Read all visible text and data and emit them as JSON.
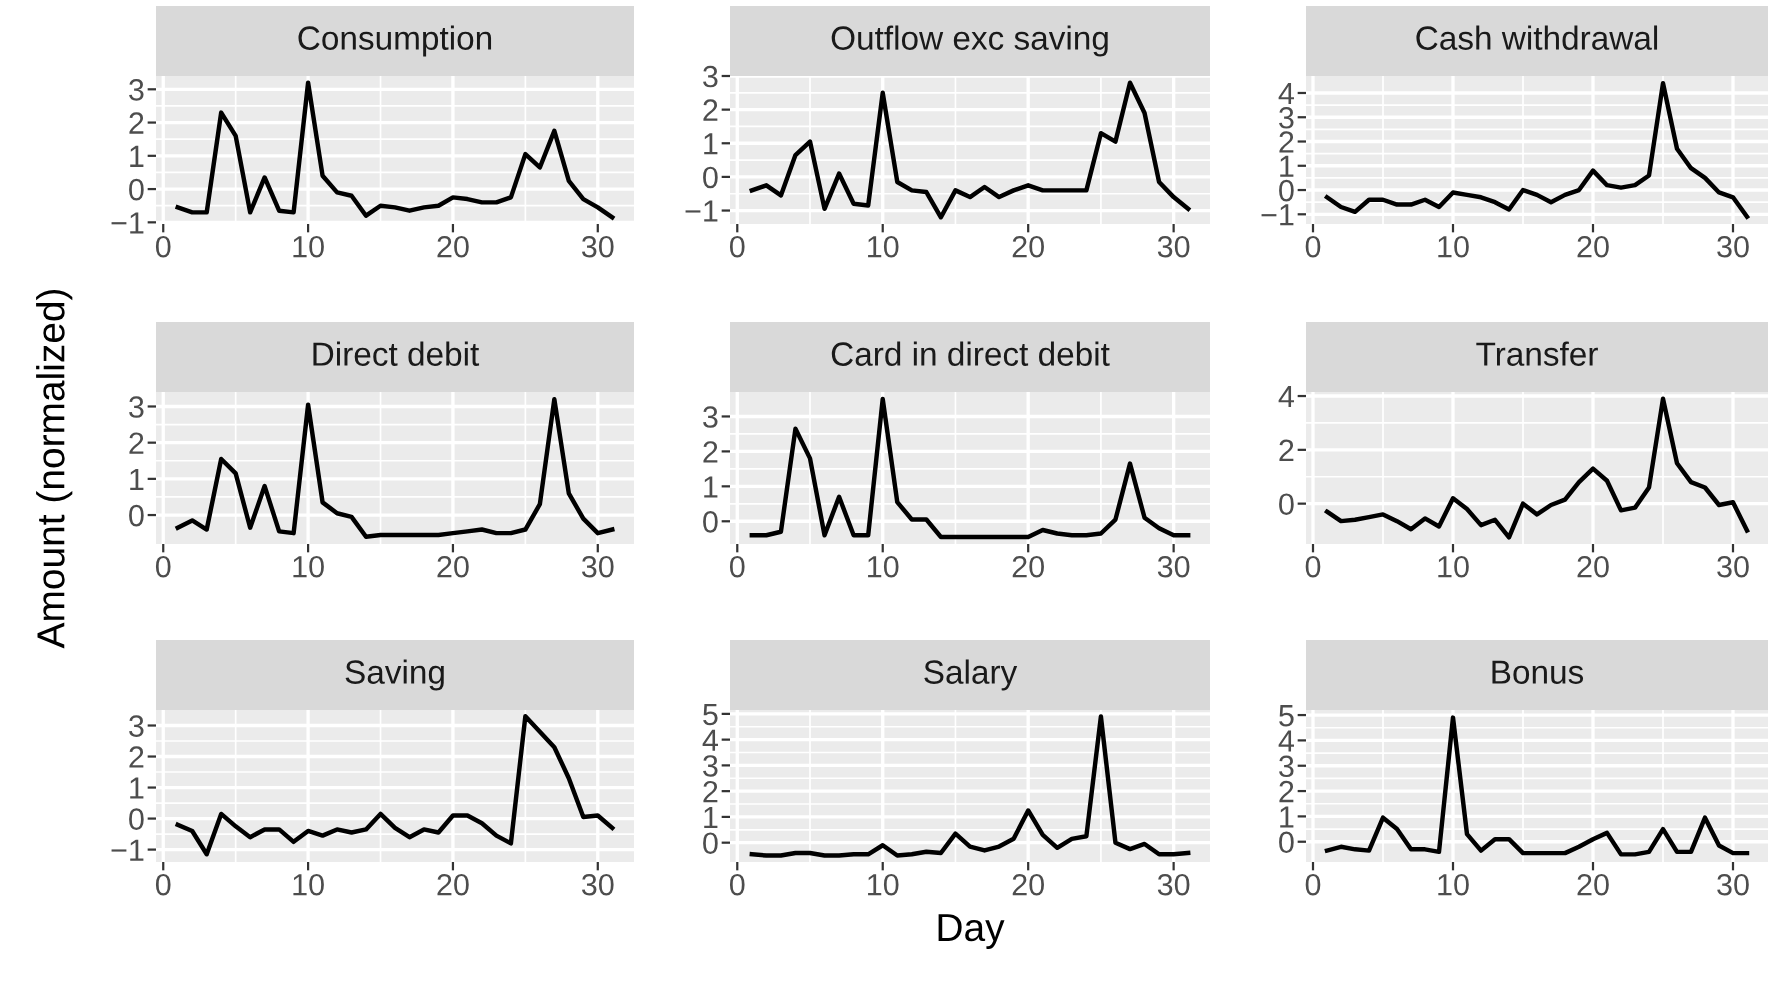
{
  "chart_data": [
    {
      "type": "line",
      "title": "Consumption",
      "color": "#000000",
      "grid": true,
      "x": [
        1,
        2,
        3,
        4,
        5,
        6,
        7,
        8,
        9,
        10,
        11,
        12,
        13,
        14,
        15,
        16,
        17,
        18,
        19,
        20,
        21,
        22,
        23,
        24,
        25,
        26,
        27,
        28,
        29,
        30,
        31
      ],
      "values": [
        -0.55,
        -0.7,
        -0.7,
        2.3,
        1.6,
        -0.7,
        0.35,
        -0.65,
        -0.7,
        3.2,
        0.4,
        -0.1,
        -0.2,
        -0.8,
        -0.5,
        -0.55,
        -0.65,
        -0.55,
        -0.5,
        -0.25,
        -0.3,
        -0.4,
        -0.4,
        -0.25,
        1.05,
        0.65,
        1.75,
        0.25,
        -0.3,
        -0.55,
        -0.85
      ],
      "xlim": [
        -0.5,
        32.5
      ],
      "xticks": [
        0,
        10,
        20,
        30
      ],
      "ylim": [
        -1.05,
        3.4
      ],
      "yticks": [
        -1,
        0,
        1,
        2,
        3
      ]
    },
    {
      "type": "line",
      "title": "Outflow exc saving",
      "color": "#000000",
      "grid": true,
      "x": [
        1,
        2,
        3,
        4,
        5,
        6,
        7,
        8,
        9,
        10,
        11,
        12,
        13,
        14,
        15,
        16,
        17,
        18,
        19,
        20,
        21,
        22,
        23,
        24,
        25,
        26,
        27,
        28,
        29,
        30,
        31
      ],
      "values": [
        -0.4,
        -0.25,
        -0.55,
        0.65,
        1.05,
        -0.95,
        0.1,
        -0.8,
        -0.85,
        2.5,
        -0.15,
        -0.4,
        -0.45,
        -1.2,
        -0.4,
        -0.6,
        -0.3,
        -0.6,
        -0.4,
        -0.25,
        -0.4,
        -0.4,
        -0.4,
        -0.4,
        1.3,
        1.05,
        2.8,
        1.9,
        -0.15,
        -0.6,
        -0.95
      ],
      "xlim": [
        -0.5,
        32.5
      ],
      "xticks": [
        0,
        10,
        20,
        30
      ],
      "ylim": [
        -1.4,
        3.0
      ],
      "yticks": [
        -1,
        0,
        1,
        2,
        3
      ]
    },
    {
      "type": "line",
      "title": "Cash withdrawal",
      "color": "#000000",
      "grid": true,
      "x": [
        1,
        2,
        3,
        4,
        5,
        6,
        7,
        8,
        9,
        10,
        11,
        12,
        13,
        14,
        15,
        16,
        17,
        18,
        19,
        20,
        21,
        22,
        23,
        24,
        25,
        26,
        27,
        28,
        29,
        30,
        31
      ],
      "values": [
        -0.3,
        -0.7,
        -0.9,
        -0.4,
        -0.4,
        -0.6,
        -0.6,
        -0.4,
        -0.7,
        -0.1,
        -0.2,
        -0.3,
        -0.5,
        -0.8,
        0,
        -0.2,
        -0.5,
        -0.2,
        0,
        0.8,
        0.2,
        0.1,
        0.2,
        0.6,
        4.4,
        1.7,
        0.9,
        0.5,
        -0.1,
        -0.3,
        -1.1
      ],
      "xlim": [
        -0.5,
        32.5
      ],
      "xticks": [
        0,
        10,
        20,
        30
      ],
      "ylim": [
        -1.4,
        4.7
      ],
      "yticks": [
        -1,
        0,
        1,
        2,
        3,
        4
      ]
    },
    {
      "type": "line",
      "title": "Direct debit",
      "ylabel": "Amount (normalized)",
      "color": "#000000",
      "grid": true,
      "x": [
        1,
        2,
        3,
        4,
        5,
        6,
        7,
        8,
        9,
        10,
        11,
        12,
        13,
        14,
        15,
        16,
        17,
        18,
        19,
        20,
        21,
        22,
        23,
        24,
        25,
        26,
        27,
        28,
        29,
        30,
        31
      ],
      "values": [
        -0.35,
        -0.15,
        -0.4,
        1.55,
        1.15,
        -0.35,
        0.8,
        -0.45,
        -0.5,
        3.05,
        0.35,
        0.05,
        -0.05,
        -0.6,
        -0.55,
        -0.55,
        -0.55,
        -0.55,
        -0.55,
        -0.5,
        -0.45,
        -0.4,
        -0.5,
        -0.5,
        -0.4,
        0.3,
        3.2,
        0.6,
        -0.1,
        -0.5,
        -0.4
      ],
      "xlim": [
        -0.5,
        32.5
      ],
      "xticks": [
        0,
        10,
        20,
        30
      ],
      "ylim": [
        -0.8,
        3.4
      ],
      "yticks": [
        0,
        1,
        2,
        3
      ]
    },
    {
      "type": "line",
      "title": "Card in direct debit",
      "color": "#000000",
      "grid": true,
      "x": [
        1,
        2,
        3,
        4,
        5,
        6,
        7,
        8,
        9,
        10,
        11,
        12,
        13,
        14,
        15,
        16,
        17,
        18,
        19,
        20,
        21,
        22,
        23,
        24,
        25,
        26,
        27,
        28,
        29,
        30,
        31
      ],
      "values": [
        -0.4,
        -0.4,
        -0.3,
        2.65,
        1.8,
        -0.4,
        0.7,
        -0.4,
        -0.4,
        3.5,
        0.55,
        0.05,
        0.05,
        -0.45,
        -0.45,
        -0.45,
        -0.45,
        -0.45,
        -0.45,
        -0.45,
        -0.25,
        -0.35,
        -0.4,
        -0.4,
        -0.35,
        0.05,
        1.65,
        0.1,
        -0.2,
        -0.4,
        -0.4
      ],
      "xlim": [
        -0.5,
        32.5
      ],
      "xticks": [
        0,
        10,
        20,
        30
      ],
      "ylim": [
        -0.65,
        3.7
      ],
      "yticks": [
        0,
        1,
        2,
        3
      ]
    },
    {
      "type": "line",
      "title": "Transfer",
      "color": "#000000",
      "grid": true,
      "x": [
        1,
        2,
        3,
        4,
        5,
        6,
        7,
        8,
        9,
        10,
        11,
        12,
        13,
        14,
        15,
        16,
        17,
        18,
        19,
        20,
        21,
        22,
        23,
        24,
        25,
        26,
        27,
        28,
        29,
        30,
        31
      ],
      "values": [
        -0.3,
        -0.65,
        -0.6,
        -0.5,
        -0.4,
        -0.65,
        -0.95,
        -0.55,
        -0.85,
        0.2,
        -0.2,
        -0.8,
        -0.6,
        -1.25,
        0,
        -0.4,
        -0.05,
        0.15,
        0.8,
        1.3,
        0.85,
        -0.25,
        -0.15,
        0.6,
        3.9,
        1.5,
        0.8,
        0.6,
        -0.05,
        0.05,
        -1.0
      ],
      "xlim": [
        -0.5,
        32.5
      ],
      "xticks": [
        0,
        10,
        20,
        30
      ],
      "ylim": [
        -1.5,
        4.15
      ],
      "yticks": [
        0,
        2,
        4
      ]
    },
    {
      "type": "line",
      "title": "Saving",
      "color": "#000000",
      "grid": true,
      "x": [
        1,
        2,
        3,
        4,
        5,
        6,
        7,
        8,
        9,
        10,
        11,
        12,
        13,
        14,
        15,
        16,
        17,
        18,
        19,
        20,
        21,
        22,
        23,
        24,
        25,
        26,
        27,
        28,
        29,
        30,
        31
      ],
      "values": [
        -0.2,
        -0.4,
        -1.15,
        0.15,
        -0.25,
        -0.6,
        -0.35,
        -0.35,
        -0.75,
        -0.4,
        -0.55,
        -0.35,
        -0.45,
        -0.35,
        0.15,
        -0.3,
        -0.6,
        -0.35,
        -0.45,
        0.1,
        0.1,
        -0.15,
        -0.55,
        -0.8,
        3.3,
        2.8,
        2.3,
        1.3,
        0.05,
        0.1,
        -0.3
      ],
      "xlim": [
        -0.5,
        32.5
      ],
      "xticks": [
        0,
        10,
        20,
        30
      ],
      "ylim": [
        -1.4,
        3.5
      ],
      "yticks": [
        -1,
        0,
        1,
        2,
        3
      ]
    },
    {
      "type": "line",
      "title": "Salary",
      "xlabel": "Day",
      "color": "#000000",
      "grid": true,
      "x": [
        1,
        2,
        3,
        4,
        5,
        6,
        7,
        8,
        9,
        10,
        11,
        12,
        13,
        14,
        15,
        16,
        17,
        18,
        19,
        20,
        21,
        22,
        23,
        24,
        25,
        26,
        27,
        28,
        29,
        30,
        31
      ],
      "values": [
        -0.45,
        -0.5,
        -0.5,
        -0.4,
        -0.4,
        -0.5,
        -0.5,
        -0.45,
        -0.45,
        -0.1,
        -0.5,
        -0.45,
        -0.35,
        -0.4,
        0.35,
        -0.15,
        -0.3,
        -0.15,
        0.15,
        1.25,
        0.3,
        -0.2,
        0.15,
        0.25,
        4.9,
        0,
        -0.25,
        -0.05,
        -0.45,
        -0.45,
        -0.4
      ],
      "xlim": [
        -0.5,
        32.5
      ],
      "xticks": [
        0,
        10,
        20,
        30
      ],
      "ylim": [
        -0.75,
        5.15
      ],
      "yticks": [
        0,
        1,
        2,
        3,
        4,
        5
      ]
    },
    {
      "type": "line",
      "title": "Bonus",
      "color": "#000000",
      "grid": true,
      "x": [
        1,
        2,
        3,
        4,
        5,
        6,
        7,
        8,
        9,
        10,
        11,
        12,
        13,
        14,
        15,
        16,
        17,
        18,
        19,
        20,
        21,
        22,
        23,
        24,
        25,
        26,
        27,
        28,
        29,
        30,
        31
      ],
      "values": [
        -0.35,
        -0.2,
        -0.3,
        -0.35,
        0.95,
        0.5,
        -0.3,
        -0.3,
        -0.4,
        4.9,
        0.3,
        -0.35,
        0.1,
        0.1,
        -0.45,
        -0.45,
        -0.45,
        -0.45,
        -0.2,
        0.1,
        0.35,
        -0.5,
        -0.5,
        -0.4,
        0.5,
        -0.4,
        -0.4,
        0.95,
        -0.15,
        -0.45,
        -0.45
      ],
      "xlim": [
        -0.5,
        32.5
      ],
      "xticks": [
        0,
        10,
        20,
        30
      ],
      "ylim": [
        -0.8,
        5.2
      ],
      "yticks": [
        0,
        1,
        2,
        3,
        4,
        5
      ]
    }
  ]
}
